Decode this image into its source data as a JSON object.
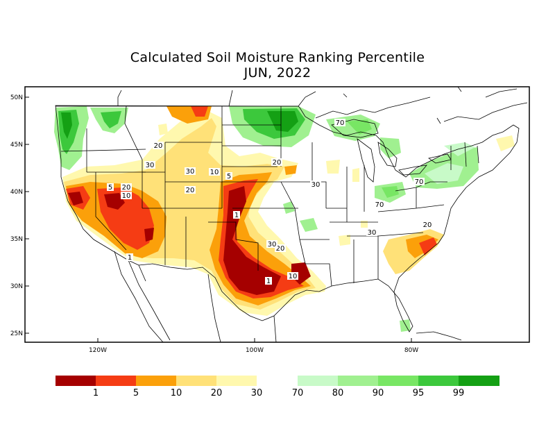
{
  "title": {
    "line1": "Calculated Soil Moisture Ranking Percentile",
    "line2": "JUN, 2022"
  },
  "axes": {
    "lat_ticks": [
      "50N",
      "45N",
      "40N",
      "35N",
      "30N",
      "25N"
    ],
    "lon_ticks": [
      "120W",
      "100W",
      "80W"
    ]
  },
  "legend": {
    "dry": [
      {
        "color": "#a50000",
        "label": "1"
      },
      {
        "color": "#f53c14",
        "label": "5"
      },
      {
        "color": "#fba00a",
        "label": "10"
      },
      {
        "color": "#ffe178",
        "label": "20"
      },
      {
        "color": "#fff8ae",
        "label": "30"
      }
    ],
    "dry_end_label": "",
    "wet_start_label": "70",
    "wet": [
      {
        "color": "#c8fac8",
        "label": "80"
      },
      {
        "color": "#a0f090",
        "label": "90"
      },
      {
        "color": "#78e664",
        "label": "95"
      },
      {
        "color": "#3cc83c",
        "label": "99"
      },
      {
        "color": "#14a014",
        "label": ""
      }
    ]
  },
  "contour_labels": [
    "1",
    "5",
    "10",
    "20",
    "30",
    "70"
  ]
}
